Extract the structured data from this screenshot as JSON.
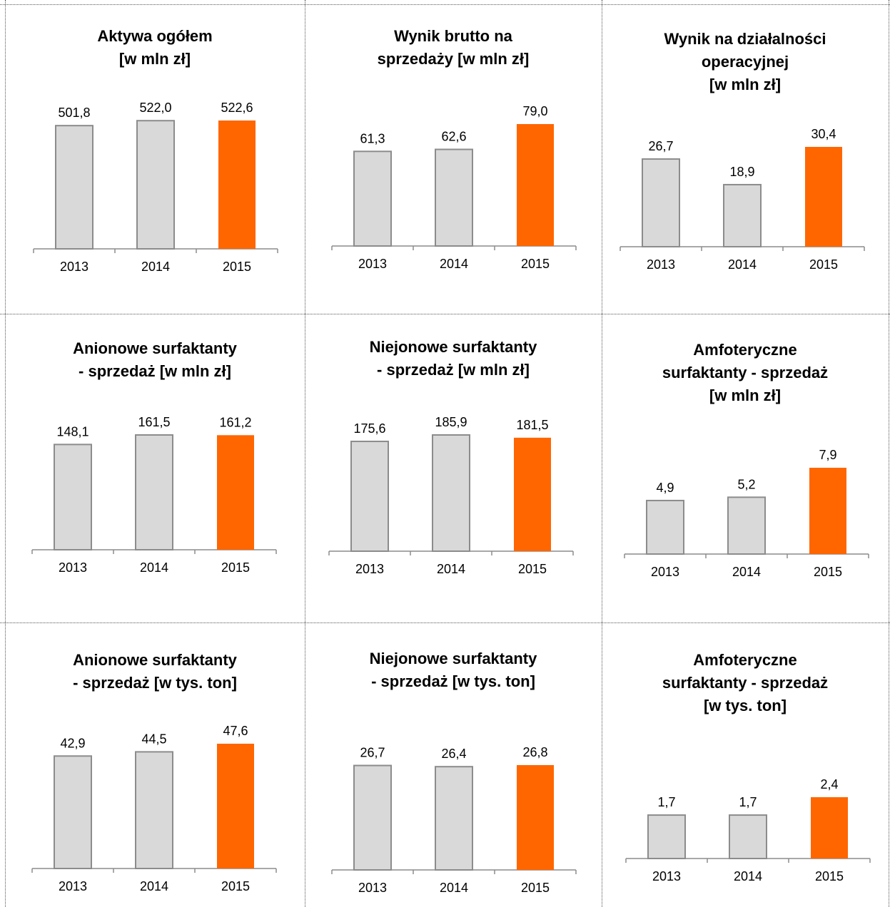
{
  "colors": {
    "past": "#d9d9d9",
    "past_stroke": "#8c8c8c",
    "current": "#ff6600",
    "axis": "#8c8c8c"
  },
  "chart_data": [
    {
      "type": "bar",
      "title": [
        "Aktywa ogółem",
        "[w mln zł]"
      ],
      "categories": [
        "2013",
        "2014",
        "2015"
      ],
      "values": [
        501.8,
        522.0,
        522.6
      ],
      "value_labels": [
        "501,8",
        "522,0",
        "522,6"
      ]
    },
    {
      "type": "bar",
      "title": [
        "Wynik brutto na",
        "sprzedaży [w mln zł]"
      ],
      "categories": [
        "2013",
        "2014",
        "2015"
      ],
      "values": [
        61.3,
        62.6,
        79.0
      ],
      "value_labels": [
        "61,3",
        "62,6",
        "79,0"
      ]
    },
    {
      "type": "bar",
      "title": [
        "Wynik na działalności",
        "operacyjnej",
        "[w mln zł]"
      ],
      "categories": [
        "2013",
        "2014",
        "2015"
      ],
      "values": [
        26.7,
        18.9,
        30.4
      ],
      "value_labels": [
        "26,7",
        "18,9",
        "30,4"
      ]
    },
    {
      "type": "bar",
      "title": [
        "Anionowe surfaktanty",
        "- sprzedaż [w mln zł]"
      ],
      "categories": [
        "2013",
        "2014",
        "2015"
      ],
      "values": [
        148.1,
        161.5,
        161.2
      ],
      "value_labels": [
        "148,1",
        "161,5",
        "161,2"
      ]
    },
    {
      "type": "bar",
      "title": [
        "Niejonowe surfaktanty",
        "- sprzedaż [w mln zł]"
      ],
      "categories": [
        "2013",
        "2014",
        "2015"
      ],
      "values": [
        175.6,
        185.9,
        181.5
      ],
      "value_labels": [
        "175,6",
        "185,9",
        "181,5"
      ]
    },
    {
      "type": "bar",
      "title": [
        "Amfoteryczne",
        "surfaktanty - sprzedaż",
        "[w mln zł]"
      ],
      "categories": [
        "2013",
        "2014",
        "2015"
      ],
      "values": [
        4.9,
        5.2,
        7.9
      ],
      "value_labels": [
        "4,9",
        "5,2",
        "7,9"
      ]
    },
    {
      "type": "bar",
      "title": [
        "Anionowe surfaktanty",
        "- sprzedaż [w tys. ton]"
      ],
      "categories": [
        "2013",
        "2014",
        "2015"
      ],
      "values": [
        42.9,
        44.5,
        47.6
      ],
      "value_labels": [
        "42,9",
        "44,5",
        "47,6"
      ]
    },
    {
      "type": "bar",
      "title": [
        "Niejonowe surfaktanty",
        "- sprzedaż [w tys. ton]"
      ],
      "categories": [
        "2013",
        "2014",
        "2015"
      ],
      "values": [
        26.7,
        26.4,
        26.8
      ],
      "value_labels": [
        "26,7",
        "26,4",
        "26,8"
      ]
    },
    {
      "type": "bar",
      "title": [
        "Amfoteryczne",
        "surfaktanty - sprzedaż",
        "[w tys. ton]"
      ],
      "categories": [
        "2013",
        "2014",
        "2015"
      ],
      "values": [
        1.7,
        1.7,
        2.4
      ],
      "value_labels": [
        "1,7",
        "1,7",
        "2,4"
      ]
    }
  ]
}
